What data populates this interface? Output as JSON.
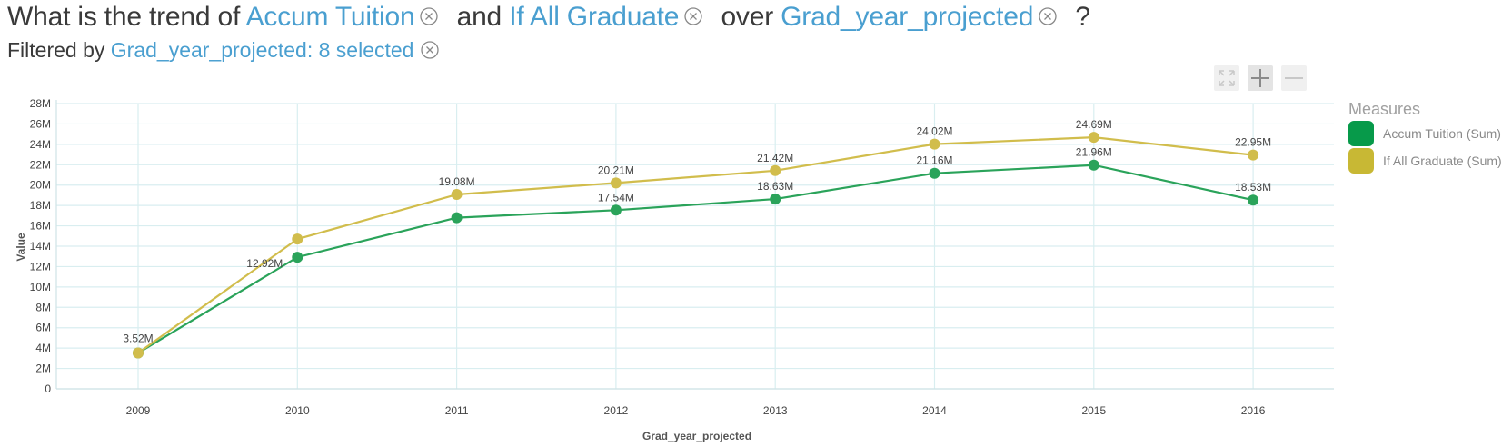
{
  "question": {
    "prefix": "What is the trend of",
    "measure1": "Accum Tuition",
    "conj": "and",
    "measure2": "If All Graduate",
    "over": "over",
    "dimension": "Grad_year_projected",
    "suffix": "?"
  },
  "filter": {
    "prefix": "Filtered by",
    "value": "Grad_year_projected: 8 selected"
  },
  "legend": {
    "title": "Measures",
    "items": [
      {
        "label": "Accum Tuition (Sum)",
        "color": "#079a4a"
      },
      {
        "label": "If All Graduate (Sum)",
        "color": "#c8b834"
      }
    ]
  },
  "colors": {
    "accent": "#4a9fd0",
    "series1": "#2aa35a",
    "series2": "#d1bd4c",
    "grid": "#d9eef0"
  },
  "chart_data": {
    "type": "line",
    "x": [
      "2009",
      "2010",
      "2011",
      "2012",
      "2013",
      "2014",
      "2015",
      "2016"
    ],
    "xlabel": "Grad_year_projected",
    "ylabel": "Value",
    "ylim": [
      0,
      28000000
    ],
    "yticks": [
      "0",
      "2M",
      "4M",
      "6M",
      "8M",
      "10M",
      "12M",
      "14M",
      "16M",
      "18M",
      "20M",
      "22M",
      "24M",
      "26M",
      "28M"
    ],
    "grid": true,
    "legend_position": "right",
    "series": [
      {
        "name": "Accum Tuition (Sum)",
        "values": [
          3520000,
          12920000,
          16800000,
          17540000,
          18630000,
          21160000,
          21960000,
          18530000
        ],
        "labels": [
          "",
          "12.92M",
          "",
          "17.54M",
          "18.63M",
          "21.16M",
          "21.96M",
          "18.53M"
        ]
      },
      {
        "name": "If All Graduate (Sum)",
        "values": [
          3520000,
          14700000,
          19080000,
          20210000,
          21420000,
          24020000,
          24690000,
          22950000
        ],
        "labels": [
          "3.52M",
          "",
          "19.08M",
          "20.21M",
          "21.42M",
          "24.02M",
          "24.69M",
          "22.95M"
        ]
      }
    ]
  }
}
